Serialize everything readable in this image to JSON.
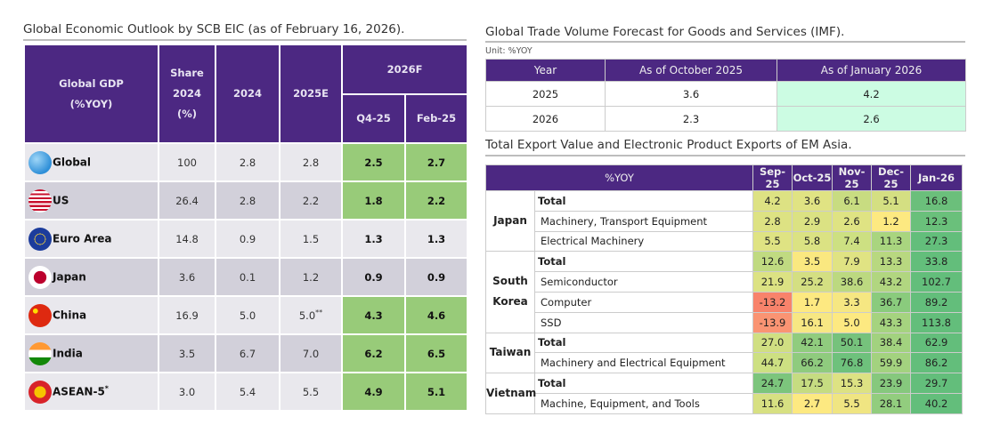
{
  "gdp_table": {
    "title": "Global Economic Outlook by SCB EIC (as of February 16, 2026).",
    "headers": {
      "label": "Global GDP",
      "label_unit": "(%YOY)",
      "share": "Share",
      "share_year": "2024",
      "share_unit": "(%)",
      "y2024": "2024",
      "y2025": "2025E",
      "forecast": "2026F",
      "q4": "Q4-25",
      "feb": "Feb-25"
    },
    "highlight_color": "#98cb79",
    "rows": [
      {
        "name": "Global",
        "icon": "globe-icon",
        "share": "100",
        "y2024": "2.8",
        "y2025": "2.8",
        "note": "",
        "q4": "2.5",
        "feb": "2.7",
        "green": true
      },
      {
        "name": "US",
        "icon": "us-flag-icon",
        "share": "26.4",
        "y2024": "2.8",
        "y2025": "2.2",
        "note": "",
        "q4": "1.8",
        "feb": "2.2",
        "green": true
      },
      {
        "name": "Euro Area",
        "icon": "eu-flag-icon",
        "share": "14.8",
        "y2024": "0.9",
        "y2025": "1.5",
        "note": "",
        "q4": "1.3",
        "feb": "1.3",
        "green": false
      },
      {
        "name": "Japan",
        "icon": "japan-flag-icon",
        "share": "3.6",
        "y2024": "0.1",
        "y2025": "1.2",
        "note": "",
        "q4": "0.9",
        "feb": "0.9",
        "green": false
      },
      {
        "name": "China",
        "icon": "china-flag-icon",
        "share": "16.9",
        "y2024": "5.0",
        "y2025": "5.0",
        "note": "**",
        "q4": "4.3",
        "feb": "4.6",
        "green": true
      },
      {
        "name": "India",
        "icon": "india-flag-icon",
        "share": "3.5",
        "y2024": "6.7",
        "y2025": "7.0",
        "note": "",
        "q4": "6.2",
        "feb": "6.5",
        "green": true
      },
      {
        "name": "ASEAN-5",
        "name_note": "*",
        "icon": "asean-flag-icon",
        "share": "3.0",
        "y2024": "5.4",
        "y2025": "5.5",
        "note": "",
        "q4": "4.9",
        "feb": "5.1",
        "green": true
      }
    ]
  },
  "trade_table": {
    "title": "Global Trade Volume Forecast for Goods and Services (IMF).",
    "unit": "Unit: %YOY",
    "headers": [
      "Year",
      "As of October 2025",
      "As of January 2026"
    ],
    "rows": [
      [
        "2025",
        "3.6",
        "4.2"
      ],
      [
        "2026",
        "2.3",
        "2.6"
      ]
    ],
    "highlight_color": "#ccfce3"
  },
  "export_table": {
    "title": "Total Export Value and Electronic Product Exports of EM Asia.",
    "header_label": "%YOY",
    "months": [
      "Sep-25",
      "Oct-25",
      "Nov-25",
      "Dec-25",
      "Jan-26"
    ],
    "groups": [
      {
        "region": "Japan",
        "rows": [
          {
            "item": "Total",
            "total": true,
            "values": [
              "4.2",
              "3.6",
              "6.1",
              "5.1",
              "16.8"
            ],
            "colors": [
              "#dde283",
              "#e0e383",
              "#c8dc81",
              "#d4df82",
              "#6bbf7b"
            ]
          },
          {
            "item": "Machinery, Transport Equipment",
            "total": false,
            "values": [
              "2.8",
              "2.9",
              "2.6",
              "1.2",
              "12.3"
            ],
            "colors": [
              "#dde283",
              "#dbe283",
              "#dfe383",
              "#fde981",
              "#6ac07b"
            ]
          },
          {
            "item": "Electrical Machinery",
            "total": false,
            "values": [
              "5.5",
              "5.8",
              "7.4",
              "11.3",
              "27.3"
            ],
            "colors": [
              "#dfe383",
              "#dbe283",
              "#cde082",
              "#a9d57f",
              "#63be7b"
            ]
          }
        ]
      },
      {
        "region": "South Korea",
        "rows": [
          {
            "item": "Total",
            "total": true,
            "values": [
              "12.6",
              "3.5",
              "7.9",
              "13.3",
              "33.8"
            ],
            "colors": [
              "#c0da81",
              "#fae880",
              "#e0e383",
              "#b8d880",
              "#63be7b"
            ]
          },
          {
            "item": "Semiconductor",
            "total": false,
            "values": [
              "21.9",
              "25.2",
              "38.6",
              "43.2",
              "102.7"
            ],
            "colors": [
              "#dce283",
              "#d4df82",
              "#bcd980",
              "#b1d680",
              "#63be7b"
            ]
          },
          {
            "item": "Computer",
            "total": false,
            "values": [
              "-13.2",
              "1.7",
              "3.3",
              "36.7",
              "89.2"
            ],
            "colors": [
              "#f8836b",
              "#fde981",
              "#f6e782",
              "#8acb7d",
              "#63be7b"
            ]
          },
          {
            "item": "SSD",
            "total": false,
            "values": [
              "-13.9",
              "16.1",
              "5.0",
              "43.3",
              "113.8"
            ],
            "colors": [
              "#fa9473",
              "#f7e783",
              "#fde981",
              "#a5d37f",
              "#63be7b"
            ]
          }
        ]
      },
      {
        "region": "Taiwan",
        "rows": [
          {
            "item": "Total",
            "total": true,
            "values": [
              "27.0",
              "42.1",
              "50.1",
              "38.4",
              "62.9"
            ],
            "colors": [
              "#d0df82",
              "#90cc7e",
              "#76c27c",
              "#a2d27f",
              "#63be7b"
            ]
          },
          {
            "item": "Machinery and Electrical Equipment",
            "total": false,
            "values": [
              "44.7",
              "66.2",
              "76.8",
              "59.9",
              "86.2"
            ],
            "colors": [
              "#cde082",
              "#8fcb7e",
              "#6ec17c",
              "#a3d27f",
              "#63be7b"
            ]
          }
        ]
      },
      {
        "region": "Vietnam",
        "rows": [
          {
            "item": "Total",
            "total": true,
            "values": [
              "24.7",
              "17.5",
              "15.3",
              "23.9",
              "29.7"
            ],
            "colors": [
              "#7cc57c",
              "#c6dc81",
              "#dde283",
              "#86c87d",
              "#63be7b"
            ]
          },
          {
            "item": "Machine, Equipment, and Tools",
            "total": false,
            "values": [
              "11.6",
              "2.7",
              "5.5",
              "28.1",
              "40.2"
            ],
            "colors": [
              "#d7e082",
              "#fde981",
              "#f0e582",
              "#92cd7e",
              "#63be7b"
            ]
          }
        ]
      }
    ]
  }
}
